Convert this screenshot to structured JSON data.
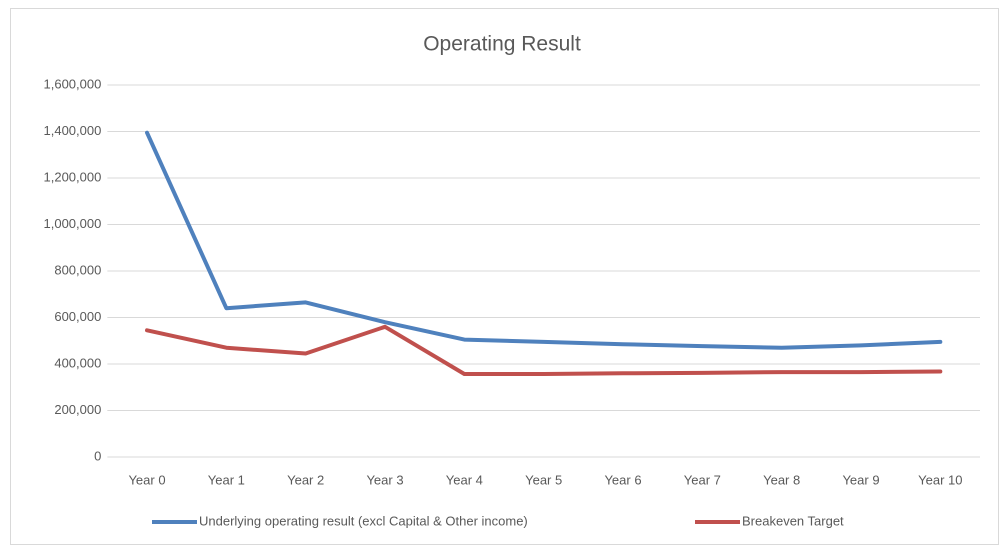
{
  "chart_data": {
    "type": "line",
    "title": "Operating Result",
    "categories": [
      "Year 0",
      "Year 1",
      "Year 2",
      "Year 3",
      "Year 4",
      "Year 5",
      "Year 6",
      "Year 7",
      "Year 8",
      "Year 9",
      "Year 10"
    ],
    "series": [
      {
        "name": "Underlying operating result (excl Capital & Other income)",
        "color": "#4f81bd",
        "values": [
          1395000,
          640000,
          665000,
          580000,
          505000,
          495000,
          485000,
          477000,
          470000,
          480000,
          495000
        ]
      },
      {
        "name": "Breakeven Target",
        "color": "#c0504d",
        "values": [
          545000,
          470000,
          445000,
          560000,
          357000,
          357000,
          360000,
          362000,
          365000,
          365000,
          368000
        ]
      }
    ],
    "ylim": [
      0,
      1600000
    ],
    "yticks": [
      0,
      {
        "value": 200000,
        "label": "200,000"
      },
      {
        "value": 400000,
        "label": "400,000"
      },
      {
        "value": 600000,
        "label": "600,000"
      },
      {
        "value": 800000,
        "label": "800,000"
      },
      {
        "value": 1000000,
        "label": "1,000,000"
      },
      {
        "value": 1200000,
        "label": "1,200,000"
      },
      {
        "value": 1400000,
        "label": "1,400,000"
      },
      {
        "value": 1600000,
        "label": "1,600,000"
      }
    ],
    "grid": true,
    "legend": "bottom"
  }
}
